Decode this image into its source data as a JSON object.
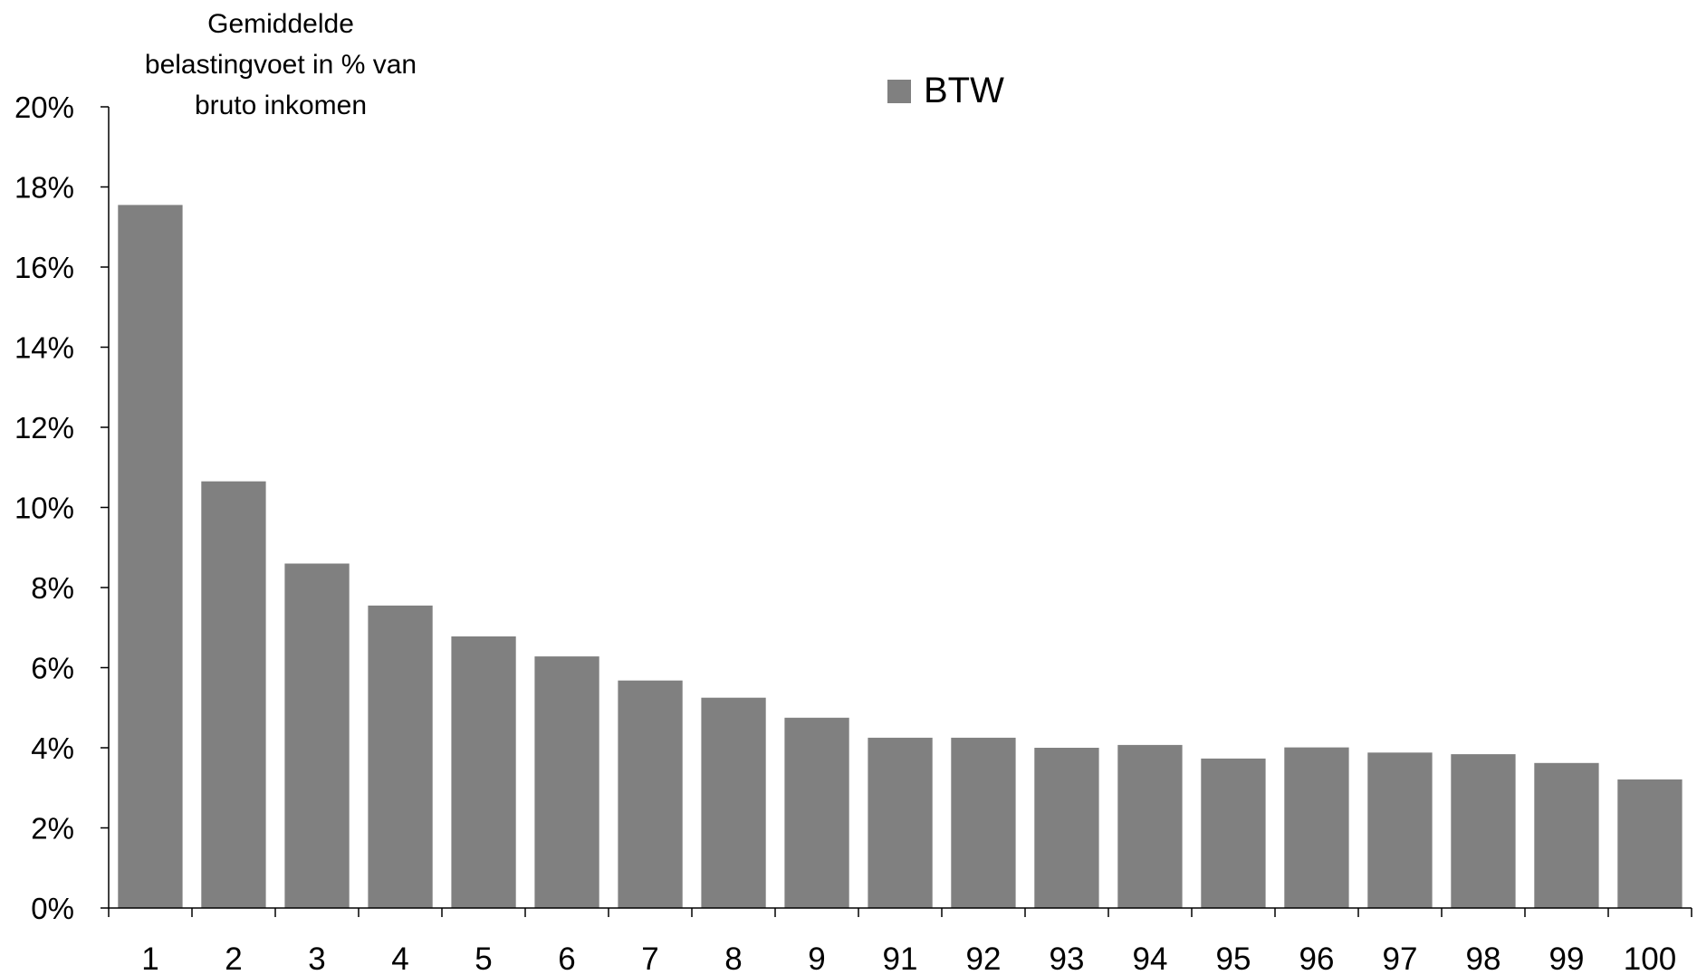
{
  "chart_data": {
    "type": "bar",
    "title": "",
    "ylabel": "Gemiddelde belastingvoet in % van bruto inkomen",
    "ylabel_lines": [
      "Gemiddelde",
      "belastingvoet in % van",
      "bruto inkomen"
    ],
    "xlabel": "",
    "categories": [
      "1",
      "2",
      "3",
      "4",
      "5",
      "6",
      "7",
      "8",
      "9",
      "91",
      "92",
      "93",
      "94",
      "95",
      "96",
      "97",
      "98",
      "99",
      "100"
    ],
    "series": [
      {
        "name": "BTW",
        "color": "#808080",
        "values": [
          17.55,
          10.65,
          8.6,
          7.55,
          6.78,
          6.28,
          5.68,
          5.25,
          4.75,
          4.25,
          4.25,
          4.0,
          4.07,
          3.73,
          4.01,
          3.88,
          3.84,
          3.62,
          3.21
        ]
      }
    ],
    "ylim": [
      0,
      20
    ],
    "yticks": [
      0,
      2,
      4,
      6,
      8,
      10,
      12,
      14,
      16,
      18,
      20
    ],
    "ytick_labels": [
      "0%",
      "2%",
      "4%",
      "6%",
      "8%",
      "10%",
      "12%",
      "14%",
      "16%",
      "18%",
      "20%"
    ],
    "grid": false,
    "legend_position": "top-center"
  }
}
